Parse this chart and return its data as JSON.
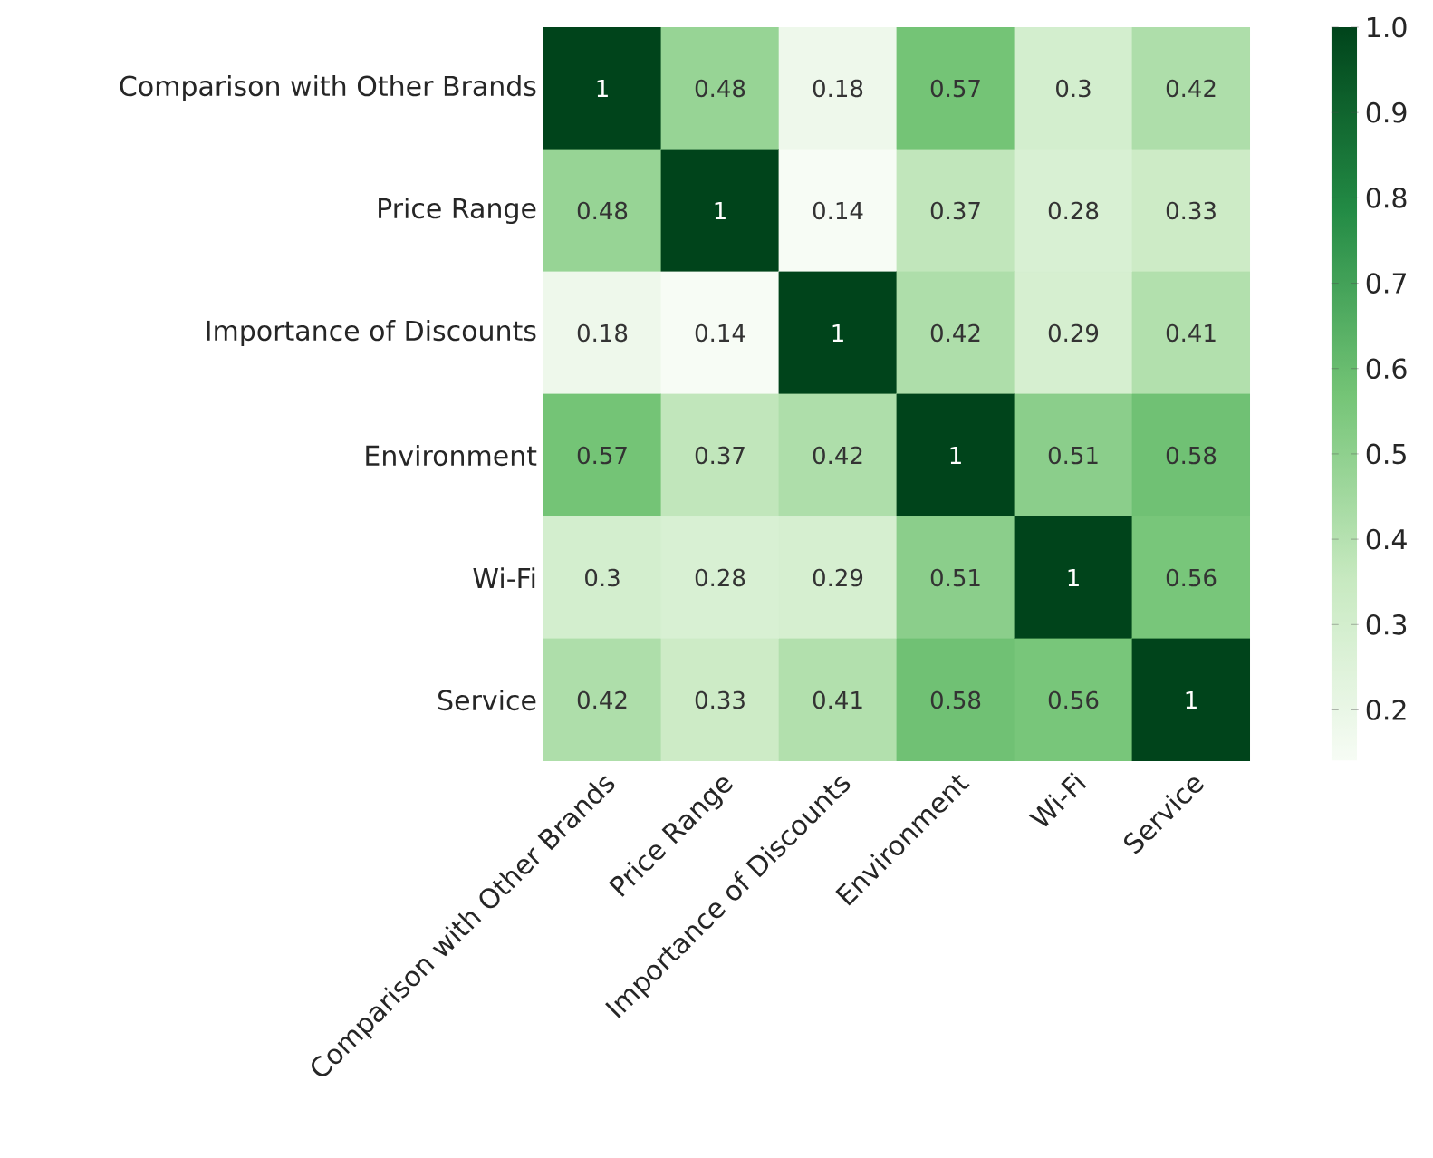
{
  "chart_data": {
    "type": "heatmap",
    "categories": [
      "Comparison with Other Brands",
      "Price Range",
      "Importance of Discounts",
      "Environment",
      "Wi-Fi",
      "Service"
    ],
    "y_categories": [
      "Comparison with Other Brands",
      "Price Range",
      "Importance of Discounts",
      "Environment",
      "Wi-Fi",
      "Service"
    ],
    "cells": [
      [
        1,
        0.48,
        0.18,
        0.57,
        0.3,
        0.42
      ],
      [
        0.48,
        1,
        0.14,
        0.37,
        0.28,
        0.33
      ],
      [
        0.18,
        0.14,
        1,
        0.42,
        0.29,
        0.41
      ],
      [
        0.57,
        0.37,
        0.42,
        1,
        0.51,
        0.58
      ],
      [
        0.3,
        0.28,
        0.29,
        0.51,
        1,
        0.56
      ],
      [
        0.42,
        0.33,
        0.41,
        0.58,
        0.56,
        1
      ]
    ],
    "data_labels": true,
    "clim": [
      0.14,
      1.0
    ],
    "cticks": [
      0.2,
      0.3,
      0.4,
      0.5,
      0.6,
      0.7,
      0.8,
      0.9,
      {
        "value": 1.0,
        "label": "1.0"
      }
    ]
  }
}
